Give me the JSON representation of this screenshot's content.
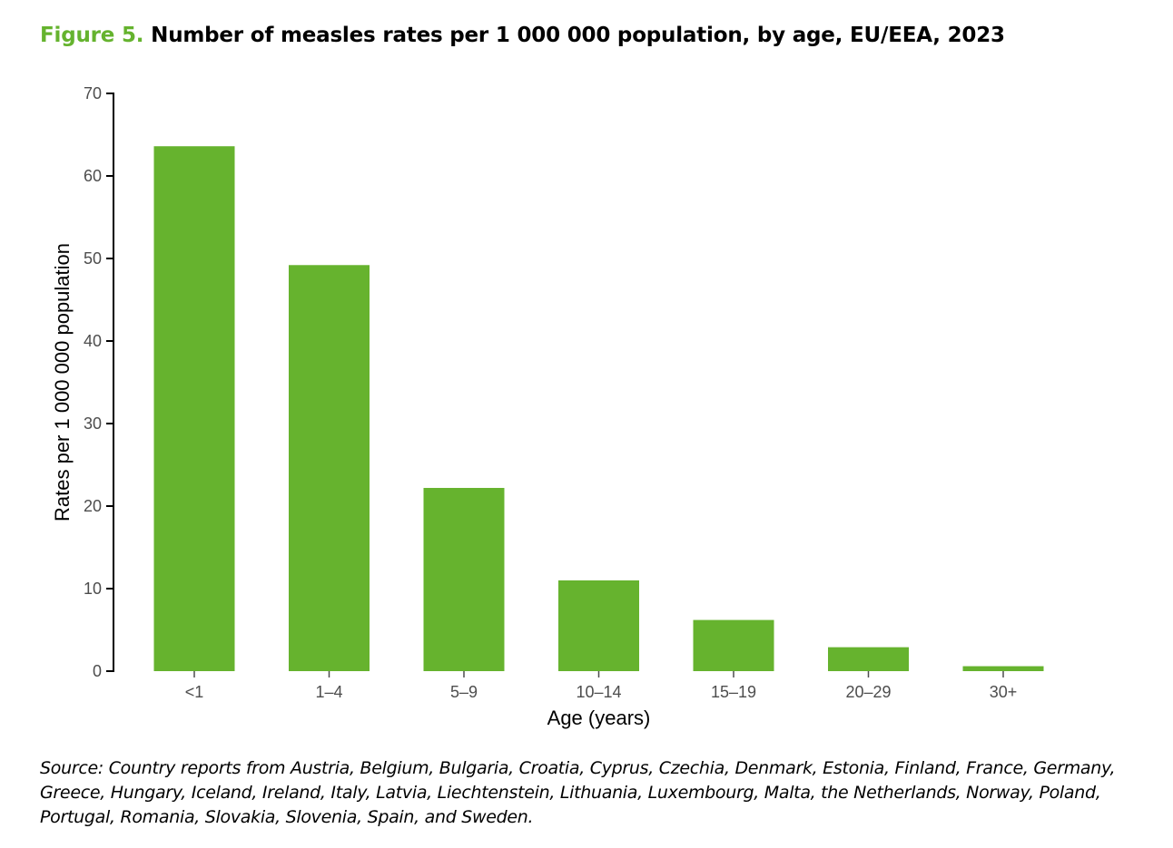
{
  "figure": {
    "label": "Figure 5.",
    "title": "Number of measles rates per 1 000 000 population, by age, EU/EEA, 2023"
  },
  "chart_data": {
    "type": "bar",
    "title": "Number of measles rates per 1 000 000 population, by age, EU/EEA, 2023",
    "categories": [
      "<1",
      "1–4",
      "5–9",
      "10–14",
      "15–19",
      "20–29",
      "30+"
    ],
    "values": [
      63.6,
      49.2,
      22.2,
      11.0,
      6.2,
      2.9,
      0.6
    ],
    "xlabel": "Age (years)",
    "ylabel": "Rates per 1 000 000 population",
    "ylim": [
      0,
      70
    ],
    "yticks": [
      0,
      10,
      20,
      30,
      40,
      50,
      60,
      70
    ],
    "bar_color": "#66B32E",
    "grid": false
  },
  "source": "Source: Country reports from Austria, Belgium, Bulgaria, Croatia, Cyprus, Czechia, Denmark, Estonia, Finland, France, Germany, Greece, Hungary, Iceland, Ireland, Italy, Latvia, Liechtenstein, Lithuania, Luxembourg, Malta, the Netherlands, Norway, Poland, Portugal, Romania, Slovakia, Slovenia, Spain, and Sweden."
}
